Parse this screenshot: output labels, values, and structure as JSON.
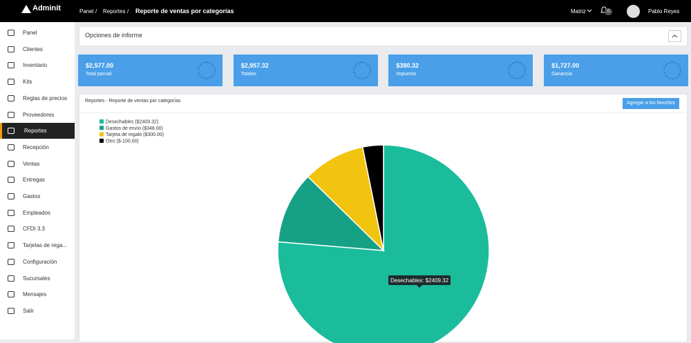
{
  "header": {
    "brand": "Adminit",
    "breadcrumb": [
      "Panel",
      "Reportes"
    ],
    "separator": "/",
    "title": "Reporte de ventas por categorías",
    "branch": "Matriz",
    "notifications": "0",
    "user": "Pablo Reyes"
  },
  "sidebar": {
    "items": [
      "Panel",
      "Clientes",
      "Inventario",
      "Kits",
      "Reglas de precios",
      "Proveedores",
      "Reportes",
      "Recepción",
      "Ventas",
      "Entregas",
      "Gastos",
      "Empleados",
      "CFDI 3.3",
      "Tarjetas de rega...",
      "Configuración",
      "Sucursales",
      "Mensajes",
      "Salir"
    ],
    "active": 6
  },
  "options": {
    "title": "Opciones de informe"
  },
  "cards": [
    {
      "value": "$2,577.00",
      "label": "Total parcial"
    },
    {
      "value": "$2,957.32",
      "label": "Totales"
    },
    {
      "value": "$380.32",
      "label": "Impuesto"
    },
    {
      "value": "$1,727.00",
      "label": "Ganancia"
    }
  ],
  "report": {
    "title": "Reportes - Reporte de ventas por categorías",
    "button": "Agregar a los favoritos"
  },
  "chart_data": {
    "type": "pie",
    "categories": [
      "Desechables ($2409.32)",
      "Gastos de envío ($348.00)",
      "Tarjeta de regalo ($300.00)",
      "Otro ($-100.00)"
    ],
    "values": [
      2409.32,
      348,
      300,
      -100
    ],
    "colors": [
      "#1abc9c",
      "#16a085",
      "#f1c40f",
      "#000000"
    ],
    "tooltip": "Desechables: $2409.32"
  }
}
